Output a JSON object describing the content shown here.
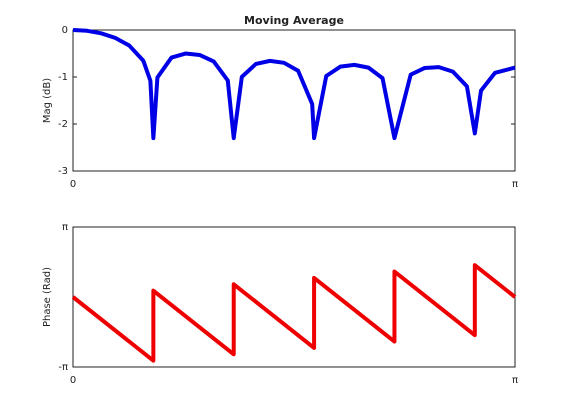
{
  "chart_data": [
    {
      "type": "line",
      "title": "Moving Average",
      "ylabel": "Mag (dB)",
      "x": [
        0,
        0.1,
        0.2,
        0.3,
        0.4,
        0.5,
        0.55,
        0.5712,
        0.6,
        0.7,
        0.8,
        0.9,
        1.0,
        1.1,
        1.1424,
        1.2,
        1.3,
        1.4,
        1.5,
        1.6,
        1.7,
        1.7136,
        1.8,
        1.9,
        2.0,
        2.1,
        2.2,
        2.2848,
        2.4,
        2.5,
        2.6,
        2.7,
        2.8,
        2.856,
        2.9,
        3.0,
        3.1416
      ],
      "values": [
        0,
        -0.017,
        -0.07,
        -0.167,
        -0.331,
        -0.655,
        -1.08,
        -2.3,
        -1.01,
        -0.586,
        -0.501,
        -0.531,
        -0.67,
        -1.072,
        -2.3,
        -0.997,
        -0.722,
        -0.657,
        -0.698,
        -0.867,
        -1.575,
        -2.3,
        -0.979,
        -0.78,
        -0.742,
        -0.8,
        -1.024,
        -2.3,
        -0.951,
        -0.808,
        -0.79,
        -0.885,
        -1.2,
        -2.2,
        -1.29,
        -0.91,
        -0.8
      ],
      "color": "#0000e6",
      "xlim": [
        0,
        3.1416
      ],
      "xticks": [
        0,
        {
          "value": 3.1416,
          "label": "π"
        }
      ],
      "ylim": [
        -3,
        0
      ],
      "yticks": [
        0,
        -1,
        -2,
        -3
      ]
    },
    {
      "type": "line",
      "ylabel": "Phase (Rad)",
      "x": [
        0,
        0.5712,
        0.5712,
        1.1424,
        1.1424,
        1.7136,
        1.7136,
        2.2848,
        2.2848,
        2.856,
        2.856,
        3.1416
      ],
      "values": [
        0,
        -2.856,
        0.2856,
        -2.5704,
        0.5712,
        -2.2848,
        0.8568,
        -1.9992,
        1.1424,
        -1.7136,
        1.428,
        0
      ],
      "color": "#ee0000",
      "xlim": [
        0,
        3.1416
      ],
      "xticks": [
        0,
        {
          "value": 3.1416,
          "label": "π"
        }
      ],
      "ylim": [
        -3.1416,
        3.1416
      ],
      "yticks": [
        {
          "value": 3.1416,
          "label": "π"
        },
        {
          "value": -3.1416,
          "label": "-π"
        }
      ]
    }
  ]
}
